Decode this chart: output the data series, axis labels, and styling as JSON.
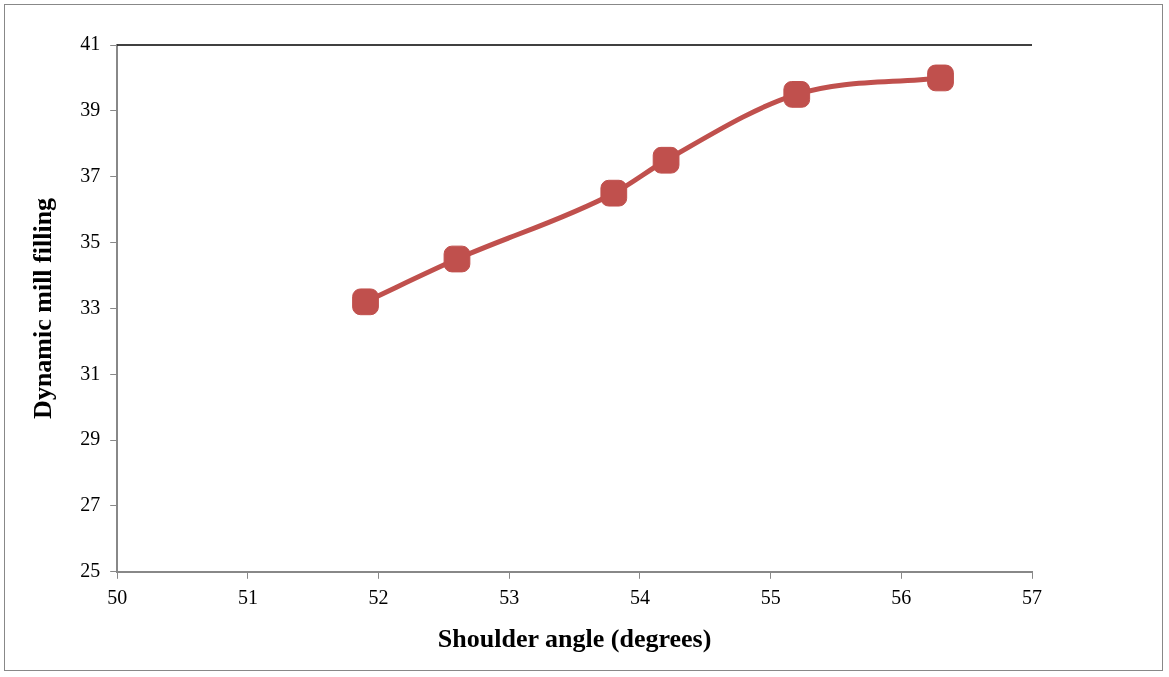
{
  "chart_data": {
    "type": "line",
    "xlabel": "Shoulder angle (degrees)",
    "ylabel": "Dynamic mill filling",
    "x": [
      51.9,
      52.6,
      53.8,
      54.2,
      55.2,
      56.3
    ],
    "series": [
      {
        "color": "#c0504d",
        "values": [
          33.2,
          34.5,
          36.5,
          37.5,
          39.5,
          40.0
        ]
      }
    ],
    "xlim": [
      50,
      57
    ],
    "xticks": [
      50,
      51,
      52,
      53,
      54,
      55,
      56,
      57
    ],
    "ylim": [
      25,
      41
    ],
    "yticks": [
      25,
      27,
      29,
      31,
      33,
      35,
      37,
      39,
      41
    ],
    "grid": false,
    "legend": false,
    "marker": "square",
    "line_style": "solid"
  }
}
